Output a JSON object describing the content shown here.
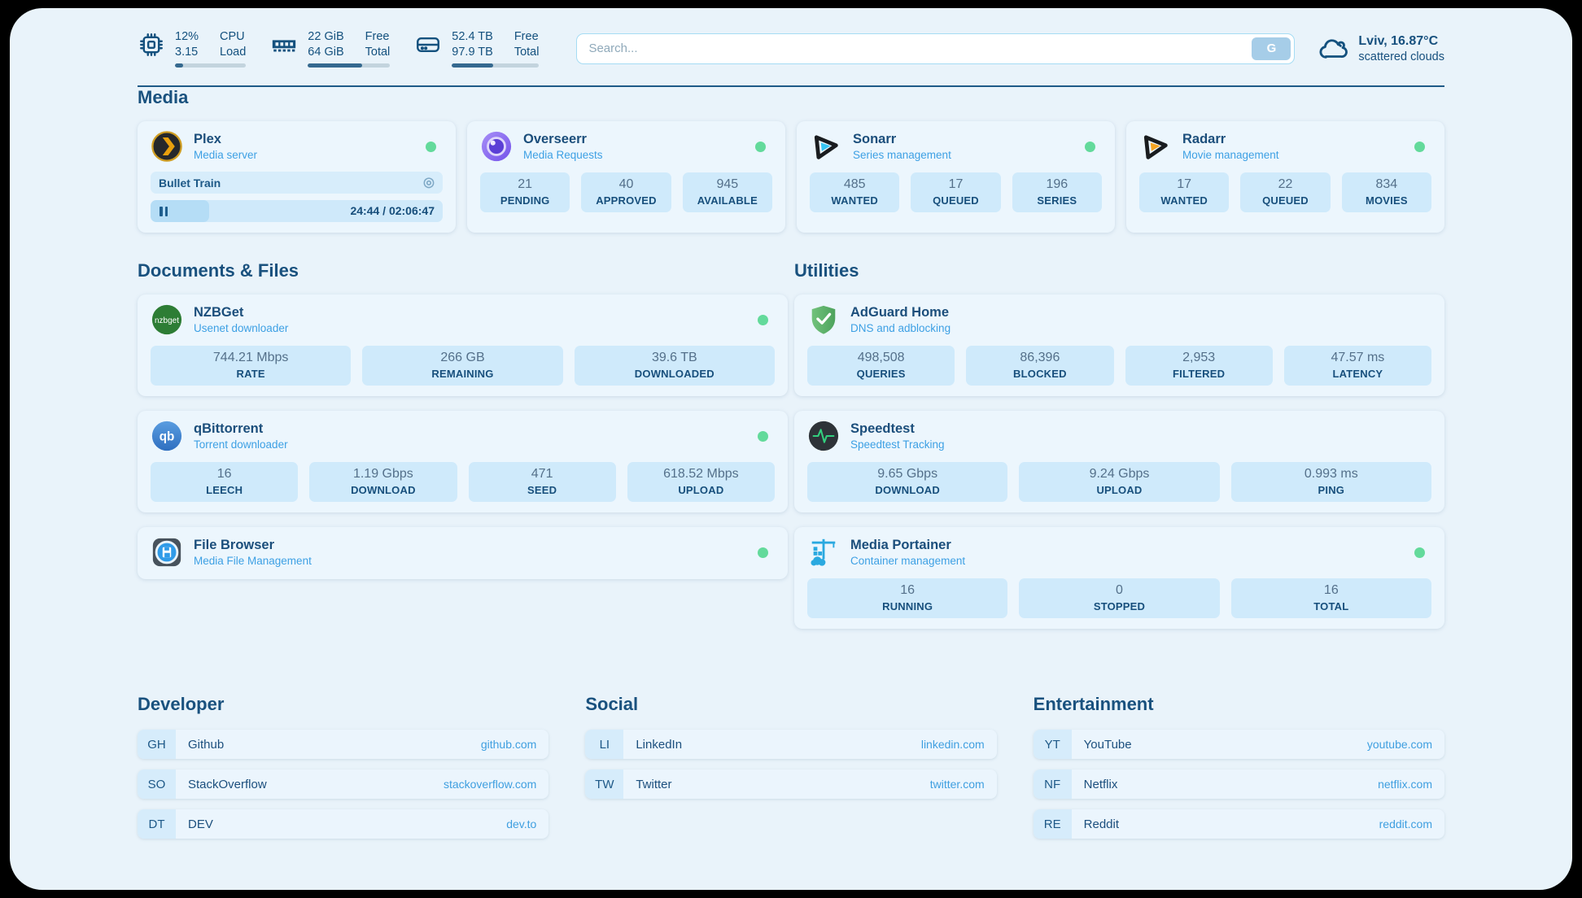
{
  "colors": {
    "page_bg": "#e9f3fa",
    "text_primary": "#1b4e7b",
    "text_accent": "#3da0e4",
    "stat_box_bg": "#cfeafb",
    "status_online": "#63da9b",
    "progress_fill": "#35698f",
    "divider": "#1e5a87"
  },
  "topbar": {
    "cpu": {
      "icon": "cpu-chip-icon",
      "value_top": "12%",
      "value_bottom": "3.15",
      "label_top": "CPU",
      "label_bottom": "Load",
      "progress": 12
    },
    "ram": {
      "icon": "ram-icon",
      "value_top": "22 GiB",
      "value_bottom": "64 GiB",
      "label_top": "Free",
      "label_bottom": "Total",
      "progress": 66
    },
    "disk": {
      "icon": "hard-drive-icon",
      "value_top": "52.4 TB",
      "value_bottom": "97.9 TB",
      "label_top": "Free",
      "label_bottom": "Total",
      "progress": 47
    },
    "search": {
      "placeholder": "Search...",
      "engine_button": "G"
    },
    "weather": {
      "icon": "cloud-icon",
      "location_temp": "Lviv, 16.87°C",
      "condition": "scattered clouds"
    }
  },
  "sections": {
    "media": {
      "title": "Media",
      "apps": [
        {
          "name": "Plex",
          "subtitle": "Media server",
          "icon": "plex-icon",
          "online": true,
          "player": {
            "title": "Bullet Train",
            "time": "24:44 / 02:06:47",
            "progress": 20
          }
        },
        {
          "name": "Overseerr",
          "subtitle": "Media Requests",
          "icon": "overseerr-icon",
          "online": true,
          "stats": [
            {
              "value": "21",
              "label": "PENDING"
            },
            {
              "value": "40",
              "label": "APPROVED"
            },
            {
              "value": "945",
              "label": "AVAILABLE"
            }
          ]
        },
        {
          "name": "Sonarr",
          "subtitle": "Series management",
          "icon": "sonarr-icon",
          "online": true,
          "stats": [
            {
              "value": "485",
              "label": "WANTED"
            },
            {
              "value": "17",
              "label": "QUEUED"
            },
            {
              "value": "196",
              "label": "SERIES"
            }
          ]
        },
        {
          "name": "Radarr",
          "subtitle": "Movie management",
          "icon": "radarr-icon",
          "online": true,
          "stats": [
            {
              "value": "17",
              "label": "WANTED"
            },
            {
              "value": "22",
              "label": "QUEUED"
            },
            {
              "value": "834",
              "label": "MOVIES"
            }
          ]
        }
      ]
    },
    "documents": {
      "title": "Documents & Files",
      "apps": [
        {
          "name": "NZBGet",
          "subtitle": "Usenet downloader",
          "icon": "nzbget-icon",
          "online": true,
          "stats": [
            {
              "value": "744.21 Mbps",
              "label": "RATE"
            },
            {
              "value": "266 GB",
              "label": "REMAINING"
            },
            {
              "value": "39.6 TB",
              "label": "DOWNLOADED"
            }
          ]
        },
        {
          "name": "qBittorrent",
          "subtitle": "Torrent downloader",
          "icon": "qbittorrent-icon",
          "online": true,
          "stats": [
            {
              "value": "16",
              "label": "LEECH"
            },
            {
              "value": "1.19 Gbps",
              "label": "DOWNLOAD"
            },
            {
              "value": "471",
              "label": "SEED"
            },
            {
              "value": "618.52 Mbps",
              "label": "UPLOAD"
            }
          ]
        },
        {
          "name": "File Browser",
          "subtitle": "Media File Management",
          "icon": "filebrowser-icon",
          "online": true
        }
      ]
    },
    "utilities": {
      "title": "Utilities",
      "apps": [
        {
          "name": "AdGuard Home",
          "subtitle": "DNS and adblocking",
          "icon": "adguard-icon",
          "online": false,
          "stats": [
            {
              "value": "498,508",
              "label": "QUERIES"
            },
            {
              "value": "86,396",
              "label": "BLOCKED"
            },
            {
              "value": "2,953",
              "label": "FILTERED"
            },
            {
              "value": "47.57 ms",
              "label": "LATENCY"
            }
          ]
        },
        {
          "name": "Speedtest",
          "subtitle": "Speedtest Tracking",
          "icon": "speedtest-icon",
          "online": false,
          "stats": [
            {
              "value": "9.65 Gbps",
              "label": "DOWNLOAD"
            },
            {
              "value": "9.24 Gbps",
              "label": "UPLOAD"
            },
            {
              "value": "0.993 ms",
              "label": "PING"
            }
          ]
        },
        {
          "name": "Media Portainer",
          "subtitle": "Container management",
          "icon": "portainer-icon",
          "online": true,
          "stats": [
            {
              "value": "16",
              "label": "RUNNING"
            },
            {
              "value": "0",
              "label": "STOPPED"
            },
            {
              "value": "16",
              "label": "TOTAL"
            }
          ]
        }
      ]
    }
  },
  "bookmarks": [
    {
      "title": "Developer",
      "links": [
        {
          "tag": "GH",
          "name": "Github",
          "url": "github.com"
        },
        {
          "tag": "SO",
          "name": "StackOverflow",
          "url": "stackoverflow.com"
        },
        {
          "tag": "DT",
          "name": "DEV",
          "url": "dev.to"
        }
      ]
    },
    {
      "title": "Social",
      "links": [
        {
          "tag": "LI",
          "name": "LinkedIn",
          "url": "linkedin.com"
        },
        {
          "tag": "TW",
          "name": "Twitter",
          "url": "twitter.com"
        }
      ]
    },
    {
      "title": "Entertainment",
      "links": [
        {
          "tag": "YT",
          "name": "YouTube",
          "url": "youtube.com"
        },
        {
          "tag": "NF",
          "name": "Netflix",
          "url": "netflix.com"
        },
        {
          "tag": "RE",
          "name": "Reddit",
          "url": "reddit.com"
        }
      ]
    }
  ]
}
